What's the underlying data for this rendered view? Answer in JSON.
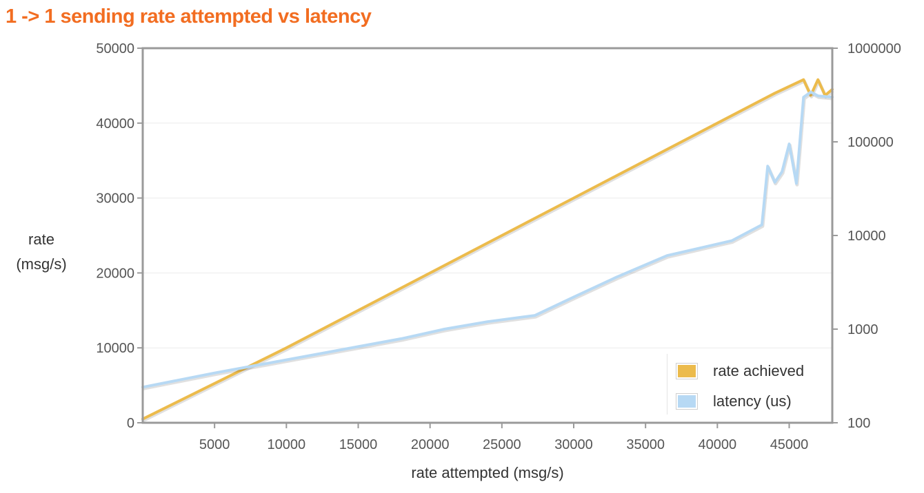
{
  "chart_data": {
    "type": "line",
    "title": "1 -> 1 sending rate attempted vs latency",
    "xlabel": "rate attempted (msg/s)",
    "ylabel": [
      "rate",
      "(msg/s)"
    ],
    "xlim": [
      0,
      48000
    ],
    "x_ticks": [
      5000,
      10000,
      15000,
      20000,
      25000,
      30000,
      35000,
      40000,
      45000
    ],
    "y_left": {
      "lim": [
        0,
        50000
      ],
      "ticks": [
        0,
        10000,
        20000,
        30000,
        40000,
        50000
      ]
    },
    "y_right": {
      "scale": "log",
      "lim": [
        100,
        1000000
      ],
      "ticks": [
        100,
        1000,
        10000,
        100000,
        1000000
      ]
    },
    "grid": true,
    "legend_position": "bottom-right",
    "series": [
      {
        "name": "rate achieved",
        "axis": "left",
        "color": "#ecbb4c",
        "x": [
          0,
          10000,
          20000,
          30000,
          40000,
          43300,
          44000,
          46000,
          46500,
          47000,
          47500,
          48000
        ],
        "y": [
          500,
          10000,
          20000,
          30000,
          40000,
          43300,
          44000,
          45800,
          43700,
          45800,
          43700,
          44500
        ]
      },
      {
        "name": "latency (us)",
        "axis": "right",
        "color": "#b7d9f4",
        "x": [
          0,
          5000,
          10000,
          15000,
          18000,
          21000,
          24000,
          27300,
          30000,
          33000,
          36500,
          41000,
          43100,
          43500,
          44000,
          44500,
          45000,
          45500,
          46000,
          46500,
          47000,
          48000
        ],
        "y": [
          240,
          340,
          470,
          650,
          790,
          1000,
          1200,
          1400,
          2200,
          3600,
          6100,
          8800,
          13000,
          55000,
          37000,
          48000,
          95000,
          36000,
          300000,
          340000,
          310000,
          300000
        ]
      }
    ]
  }
}
